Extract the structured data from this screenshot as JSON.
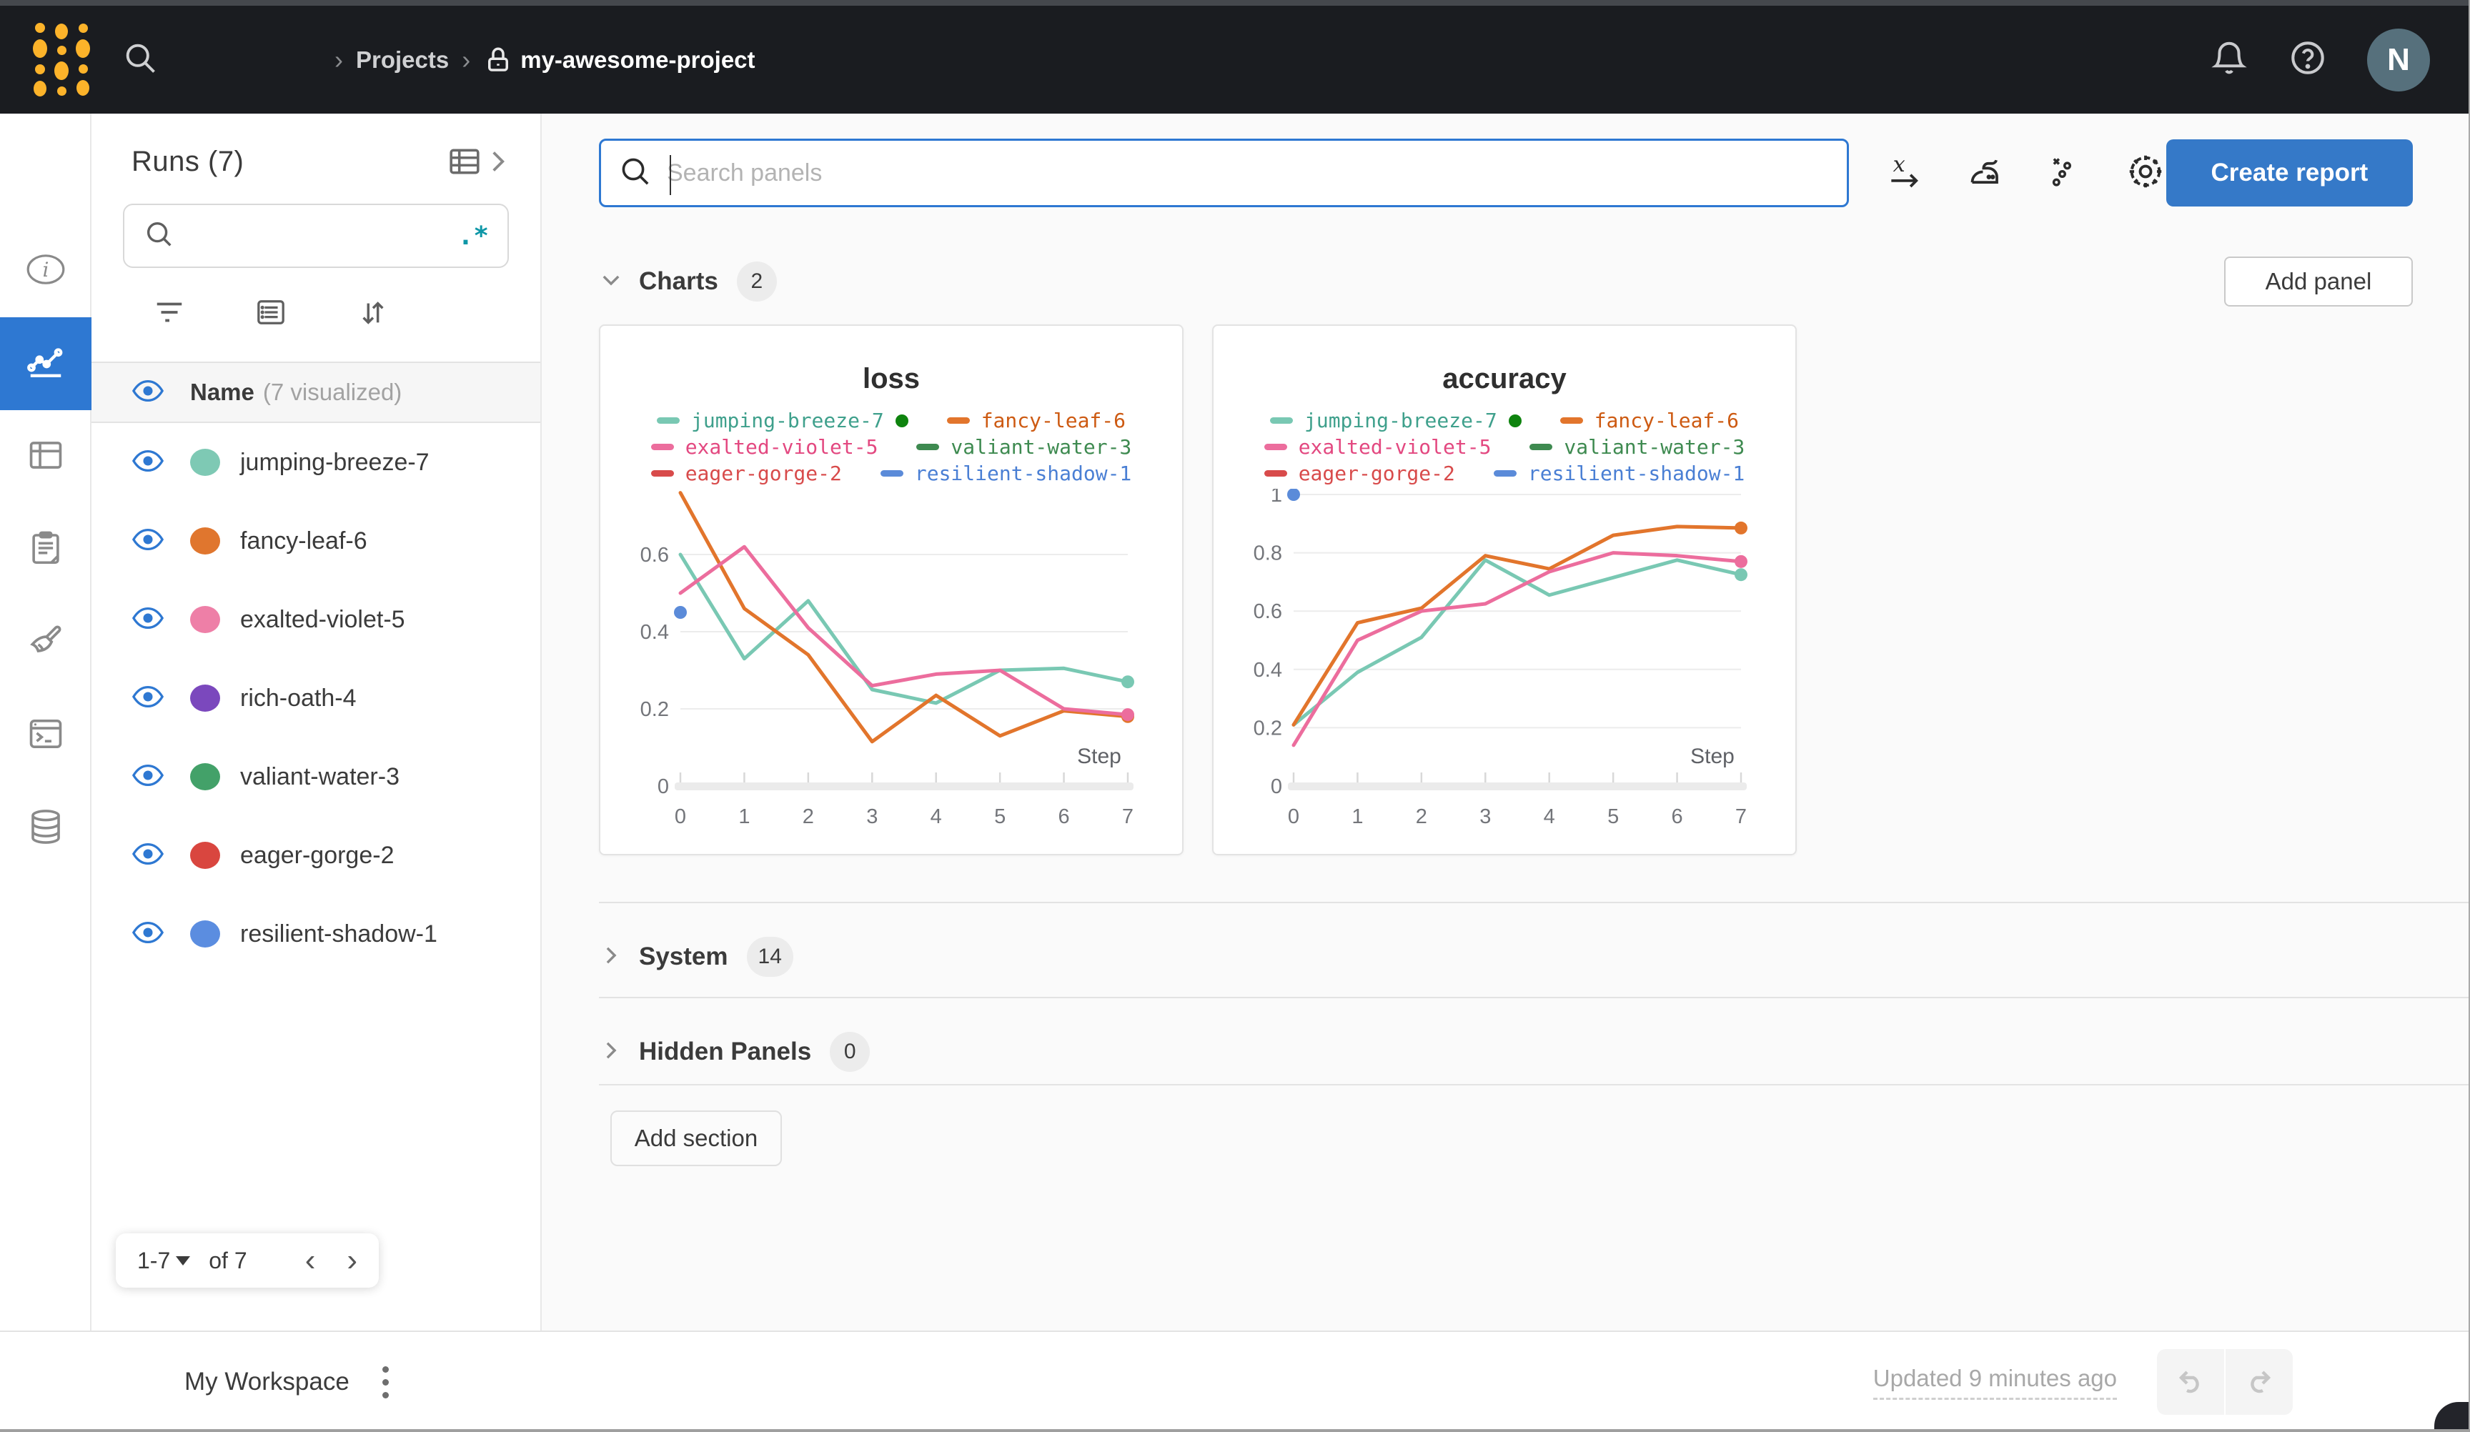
{
  "topbar": {
    "breadcrumb": {
      "separator": "›",
      "projects": "Projects",
      "project": "my-awesome-project"
    },
    "icons": [
      "wandb-logo",
      "search-icon",
      "lock-icon",
      "bell-icon",
      "help-icon"
    ],
    "avatar_initial": "N"
  },
  "rail": {
    "items": [
      {
        "icon": "info-icon",
        "active": false
      },
      {
        "icon": "line-chart-icon",
        "active": true
      },
      {
        "icon": "table-icon",
        "active": false
      },
      {
        "icon": "clipboard-icon",
        "active": false
      },
      {
        "icon": "broom-icon",
        "active": false
      },
      {
        "icon": "terminal-icon",
        "active": false
      },
      {
        "icon": "database-icon",
        "active": false
      }
    ]
  },
  "runs": {
    "title": "Runs (7)",
    "header_icons": [
      "runs-table-icon",
      "chevron-right-icon"
    ],
    "search": {
      "placeholder": "",
      "regex_toggle": ".*",
      "icon": "search-icon"
    },
    "tool_icons": [
      "filter-icon",
      "group-icon",
      "sort-icon"
    ],
    "columns": {
      "name": "Name",
      "visualized": "(7 visualized)"
    },
    "rows": [
      {
        "name": "jumping-breeze-7",
        "color": "#7ec9b4",
        "running": true
      },
      {
        "name": "fancy-leaf-6",
        "color": "#e0762e",
        "running": false
      },
      {
        "name": "exalted-violet-5",
        "color": "#ee7fa7",
        "running": false
      },
      {
        "name": "rich-oath-4",
        "color": "#7b48bd",
        "running": false
      },
      {
        "name": "valiant-water-3",
        "color": "#43a169",
        "running": false
      },
      {
        "name": "eager-gorge-2",
        "color": "#d9463f",
        "running": false
      },
      {
        "name": "resilient-shadow-1",
        "color": "#5b8de0",
        "running": false
      }
    ],
    "pagination": {
      "range": "1-7",
      "of": "of 7",
      "prev": "‹",
      "next": "›"
    }
  },
  "main": {
    "search": {
      "placeholder": "Search panels"
    },
    "toolbar_icons": [
      "x-axis-icon",
      "smoothing-iron-icon",
      "outliers-icon",
      "gear-icon"
    ],
    "create_report_label": "Create report",
    "add_panel_label": "Add panel",
    "add_section_label": "Add section",
    "sections": {
      "charts": {
        "label": "Charts",
        "count": "2"
      },
      "system": {
        "label": "System",
        "count": "14"
      },
      "hidden": {
        "label": "Hidden Panels",
        "count": "0"
      }
    }
  },
  "footer": {
    "workspace_label": "My Workspace",
    "updated_label": "Updated 9 minutes ago",
    "icons": [
      "kebab-icon",
      "undo-icon",
      "redo-icon"
    ]
  },
  "chart_data": [
    {
      "type": "line",
      "title": "loss",
      "xlabel": "Step",
      "x": [
        0,
        1,
        2,
        3,
        4,
        5,
        6,
        7
      ],
      "x_tick_labels": [
        "0",
        "1",
        "2",
        "3",
        "4",
        "5",
        "6",
        "7"
      ],
      "y_ticks": [
        0,
        0.2,
        0.4,
        0.6
      ],
      "y_tick_labels": [
        "0",
        "0.2",
        "0.4",
        "0.6"
      ],
      "ylim": [
        0,
        0.77
      ],
      "grid": true,
      "legend_position": "top",
      "series": [
        {
          "name": "jumping-breeze-7",
          "color": "#79c8b3",
          "text_color": "#3fa08c",
          "running": true,
          "values": [
            0.6,
            0.33,
            0.48,
            0.25,
            0.215,
            0.3,
            0.305,
            0.27
          ],
          "end_dot": true
        },
        {
          "name": "fancy-leaf-6",
          "color": "#e2752c",
          "text_color": "#cd5a12",
          "values": [
            0.76,
            0.46,
            0.34,
            0.115,
            0.235,
            0.13,
            0.195,
            0.18
          ],
          "end_dot": true
        },
        {
          "name": "exalted-violet-5",
          "color": "#ec6d9d",
          "text_color": "#e34880",
          "values": [
            0.5,
            0.62,
            0.41,
            0.26,
            0.29,
            0.3,
            0.2,
            0.185
          ],
          "end_dot": true
        },
        {
          "name": "valiant-water-3",
          "color": "#3e8a50",
          "text_color": "#3e8a50",
          "values": []
        },
        {
          "name": "eager-gorge-2",
          "color": "#d84b4b",
          "text_color": "#d84b4b",
          "values": []
        },
        {
          "name": "resilient-shadow-1",
          "color": "#5b8bd9",
          "text_color": "#4a7fd4",
          "points": [
            [
              0,
              0.45
            ]
          ]
        }
      ]
    },
    {
      "type": "line",
      "title": "accuracy",
      "xlabel": "Step",
      "x": [
        0,
        1,
        2,
        3,
        4,
        5,
        6,
        7
      ],
      "x_tick_labels": [
        "0",
        "1",
        "2",
        "3",
        "4",
        "5",
        "6",
        "7"
      ],
      "y_ticks": [
        0,
        0.2,
        0.4,
        0.6,
        0.8,
        1
      ],
      "y_tick_labels": [
        "0",
        "0.2",
        "0.4",
        "0.6",
        "0.8",
        "1"
      ],
      "ylim": [
        0,
        1.0
      ],
      "grid": true,
      "legend_position": "top",
      "series": [
        {
          "name": "jumping-breeze-7",
          "color": "#79c8b3",
          "text_color": "#3fa08c",
          "running": true,
          "values": [
            0.21,
            0.39,
            0.51,
            0.775,
            0.655,
            0.715,
            0.775,
            0.725
          ],
          "end_dot": true
        },
        {
          "name": "fancy-leaf-6",
          "color": "#e2752c",
          "text_color": "#cd5a12",
          "values": [
            0.21,
            0.56,
            0.61,
            0.79,
            0.745,
            0.86,
            0.89,
            0.885
          ],
          "end_dot": true
        },
        {
          "name": "exalted-violet-5",
          "color": "#ec6d9d",
          "text_color": "#e34880",
          "values": [
            0.14,
            0.5,
            0.6,
            0.625,
            0.735,
            0.8,
            0.79,
            0.77
          ],
          "end_dot": true
        },
        {
          "name": "valiant-water-3",
          "color": "#3e8a50",
          "text_color": "#3e8a50",
          "values": []
        },
        {
          "name": "eager-gorge-2",
          "color": "#d84b4b",
          "text_color": "#d84b4b",
          "values": []
        },
        {
          "name": "resilient-shadow-1",
          "color": "#5b8bd9",
          "text_color": "#4a7fd4",
          "points": [
            [
              0,
              1.0
            ]
          ]
        }
      ]
    }
  ]
}
